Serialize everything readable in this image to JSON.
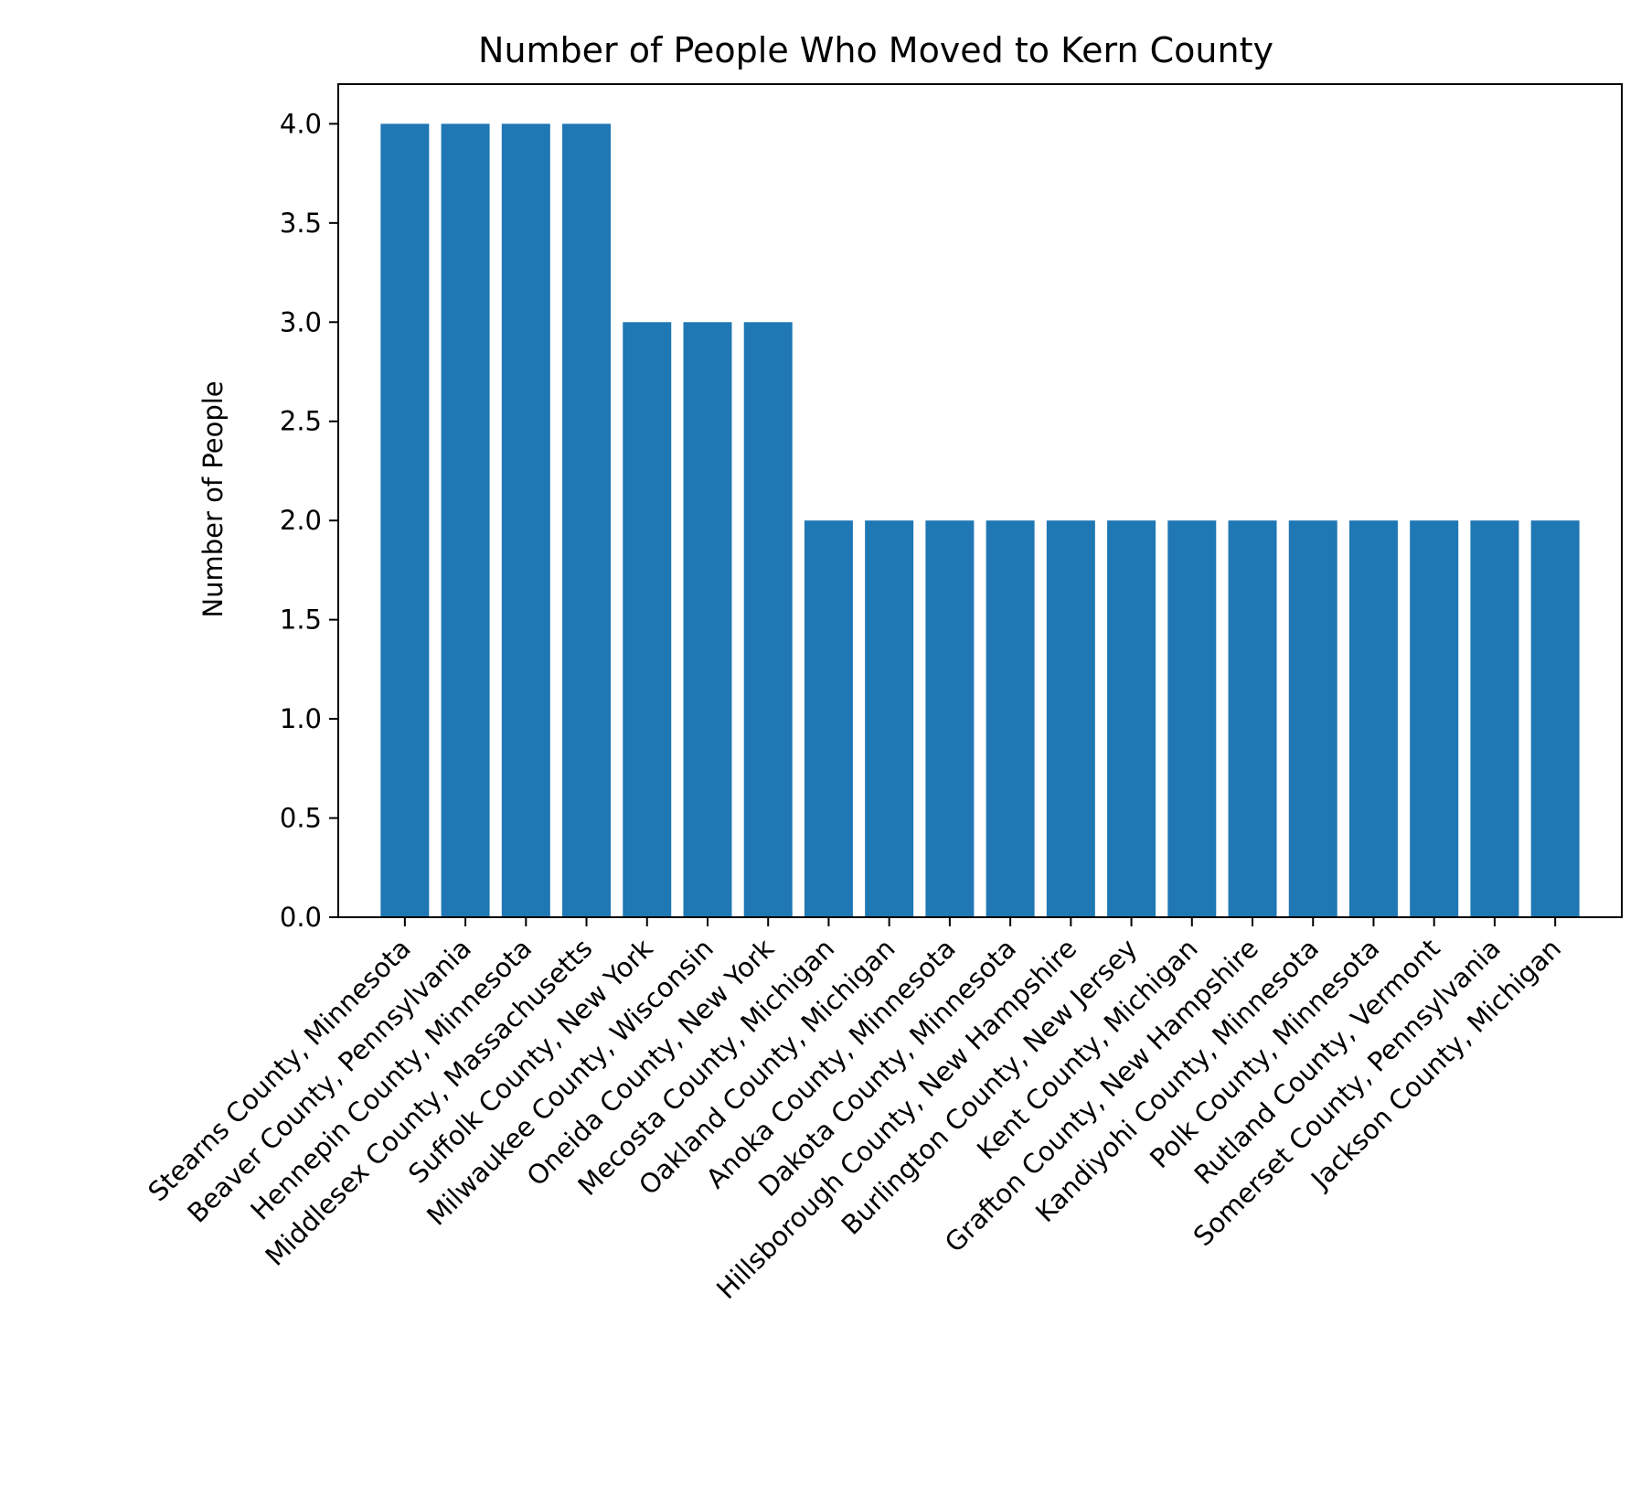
{
  "chart_data": {
    "type": "bar",
    "title": "Number of People Who Moved to Kern County",
    "xlabel": "",
    "ylabel": "Number of People",
    "ylim": [
      0,
      4.2
    ],
    "yticks": [
      "0.0",
      "0.5",
      "1.0",
      "1.5",
      "2.0",
      "2.5",
      "3.0",
      "3.5",
      "4.0"
    ],
    "bar_color": "#1f77b4",
    "grid": false,
    "categories": [
      "Stearns County, Minnesota",
      "Beaver County, Pennsylvania",
      "Hennepin County, Minnesota",
      "Middlesex County, Massachusetts",
      "Suffolk County, New York",
      "Milwaukee County, Wisconsin",
      "Oneida County, New York",
      "Mecosta County, Michigan",
      "Oakland County, Michigan",
      "Anoka County, Minnesota",
      "Dakota County, Minnesota",
      "Hillsborough County, New Hampshire",
      "Burlington County, New Jersey",
      "Kent County, Michigan",
      "Grafton County, New Hampshire",
      "Kandiyohi County, Minnesota",
      "Polk County, Minnesota",
      "Rutland County, Vermont",
      "Somerset County, Pennsylvania",
      "Jackson County, Michigan"
    ],
    "values": [
      4,
      4,
      4,
      4,
      3,
      3,
      3,
      2,
      2,
      2,
      2,
      2,
      2,
      2,
      2,
      2,
      2,
      2,
      2,
      2
    ]
  }
}
